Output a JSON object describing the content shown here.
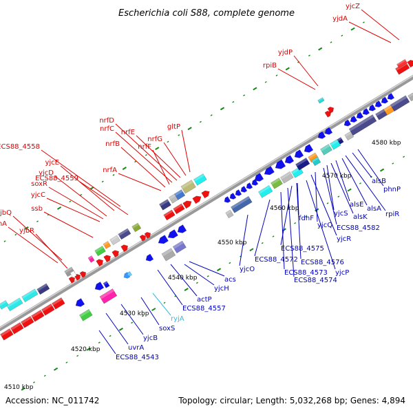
{
  "title": "Escherichia coli S88, complete genome",
  "footer": {
    "accession": "Accession: NC_011742",
    "summary": "Topology: circular; Length: 5,032,268 bp; Genes: 4,894"
  },
  "colors": {
    "forward_label": "#dd0000",
    "reverse_label": "#0000bb",
    "rna_label": "#33bbdd",
    "backbone": "#888888",
    "tick": "#118811"
  },
  "kbp_marks": [
    "4510 kbp",
    "4520 kbp",
    "4530 kbp",
    "4540 kbp",
    "4550 kbp",
    "4560 kbp",
    "4570 kbp",
    "4580 kbp"
  ],
  "forward_labels": [
    "yjcZ",
    "yjdA",
    "yjdP",
    "rpiB",
    "gltP",
    "nrfG",
    "nrfE",
    "nrfD",
    "nrfC",
    "nrfF",
    "nrfB",
    "nrfA",
    "ECS88_4558",
    "yjcE",
    "ECS88_4559",
    "yjcD",
    "soxR",
    "yjcC",
    "ssb",
    "yjbQ",
    "aphA",
    "yjbR"
  ],
  "reverse_labels": [
    "phnP",
    "alsB",
    "rpiR",
    "alsA",
    "alsE",
    "alsK",
    "yjcS",
    "ECS88_4582",
    "yjcQ",
    "yjcR",
    "fdhF",
    "ECS88_4575",
    "yjcP",
    "ECS88_4576",
    "ECS88_4574",
    "ECS88_4573",
    "ECS88_4572",
    "yjcO",
    "acs",
    "yjcH",
    "actP",
    "ECS88_4557",
    "soxS",
    "yjcB",
    "uvrA",
    "ECS88_4543"
  ],
  "rna_labels": [
    "ryjA"
  ]
}
